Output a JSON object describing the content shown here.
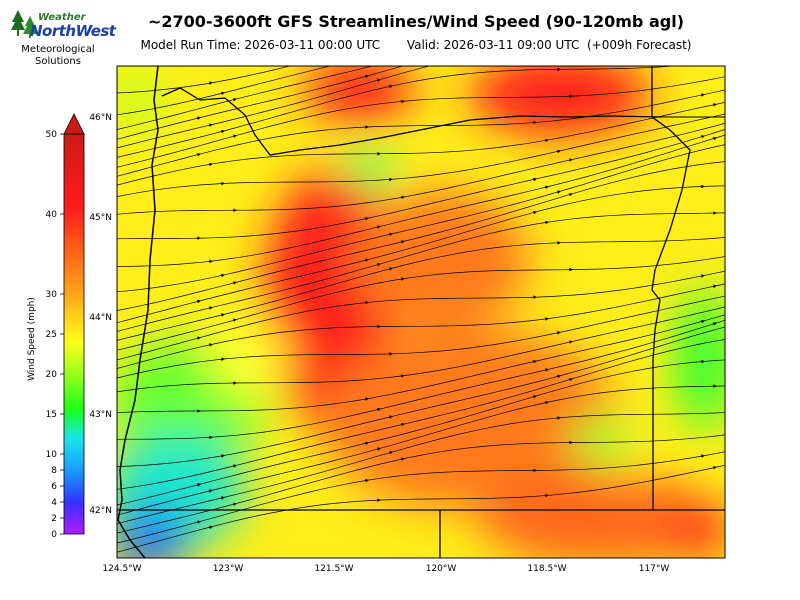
{
  "title": "~2700-3600ft GFS Streamlines/Wind Speed (90-120mb agl)",
  "model_run_label": "Model Run Time: 2026-03-11 00:00 UTC",
  "valid_label": "Valid: 2026-03-11 09:00 UTC  (+009h Forecast)",
  "logo": {
    "word1": "Weather",
    "word2": "NorthWest",
    "line1": "Meteorological",
    "line2": "Solutions"
  },
  "colorbar": {
    "label": "Wind Speed (mph)",
    "ticks": [
      "50",
      "40",
      "30",
      "25",
      "20",
      "15",
      "10",
      "8",
      "6",
      "4",
      "2",
      "0"
    ]
  },
  "axes": {
    "lon_labels": [
      "124.5°W",
      "123°W",
      "121.5°W",
      "120°W",
      "118.5°W",
      "117°W"
    ],
    "lat_labels": [
      "46°N",
      "45°N",
      "44°N",
      "43°N",
      "42°N"
    ]
  },
  "colors": {
    "fast": "#ff1a1a",
    "strong": "#ff7a00",
    "moderate": "#ffff1a",
    "light": "#33ff33",
    "calm": "#1a9cff"
  }
}
